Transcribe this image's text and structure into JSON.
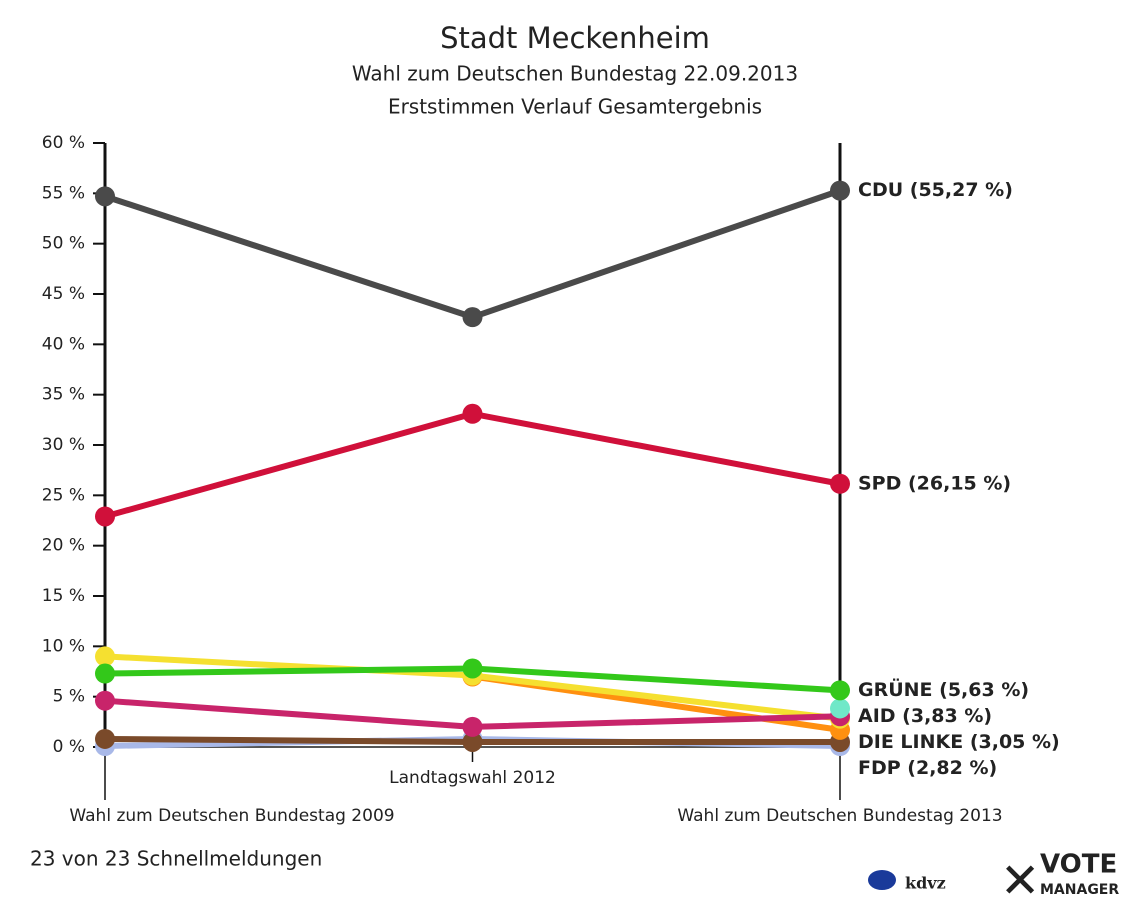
{
  "chart_data": {
    "type": "line",
    "title": "Stadt Meckenheim",
    "subtitle": [
      "Wahl zum Deutschen Bundestag 22.09.2013",
      "Erststimmen Verlauf Gesamtergebnis"
    ],
    "categories": [
      "Wahl zum Deutschen Bundestag 2009",
      "Landtagswahl 2012",
      "Wahl zum Deutschen Bundestag 2013"
    ],
    "series": [
      {
        "name": "CDU",
        "label": "CDU (55,27 %)",
        "color": "#4a4a4a",
        "values": [
          54.7,
          42.7,
          55.27
        ]
      },
      {
        "name": "SPD",
        "label": "SPD (26,15 %)",
        "color": "#d0103a",
        "values": [
          22.9,
          33.1,
          26.15
        ]
      },
      {
        "name": "GRÜNE",
        "label": "GRÜNE (5,63 %)",
        "color": "#33c81a",
        "values": [
          7.3,
          7.8,
          5.63
        ]
      },
      {
        "name": "AID",
        "label": "AID (3,83 %)",
        "color": "#70e8c8",
        "values": [
          null,
          null,
          3.83
        ]
      },
      {
        "name": "DIE LINKE",
        "label": "DIE LINKE (3,05 %)",
        "color": "#c8246a",
        "values": [
          4.6,
          2.0,
          3.05
        ]
      },
      {
        "name": "FDP",
        "label": "FDP (2,82 %)",
        "color": "#f5e030",
        "values": [
          9.0,
          7.1,
          2.82
        ]
      },
      {
        "color": "#ff9010",
        "values": [
          null,
          7.0,
          1.7
        ]
      },
      {
        "color": "#7a4a2a",
        "values": [
          0.8,
          0.5,
          0.5
        ]
      },
      {
        "color": "#a8b8e8",
        "values": [
          0.1,
          0.8,
          0.1
        ]
      }
    ],
    "ylim": [
      0,
      60
    ],
    "yticks": [
      {
        "value": 0,
        "label": "0 %"
      },
      {
        "value": 5,
        "label": "5 %"
      },
      {
        "value": 10,
        "label": "10 %"
      },
      {
        "value": 15,
        "label": "15 %"
      },
      {
        "value": 20,
        "label": "20 %"
      },
      {
        "value": 25,
        "label": "25 %"
      },
      {
        "value": 30,
        "label": "30 %"
      },
      {
        "value": 35,
        "label": "35 %"
      },
      {
        "value": 40,
        "label": "40 %"
      },
      {
        "value": 45,
        "label": "45 %"
      },
      {
        "value": 50,
        "label": "50 %"
      },
      {
        "value": 55,
        "label": "55 %"
      },
      {
        "value": 60,
        "label": "60 %"
      }
    ],
    "footer": "23 von 23 Schnellmeldungen",
    "logos": [
      "kdvz",
      "VOTE",
      "MANAGER"
    ]
  }
}
